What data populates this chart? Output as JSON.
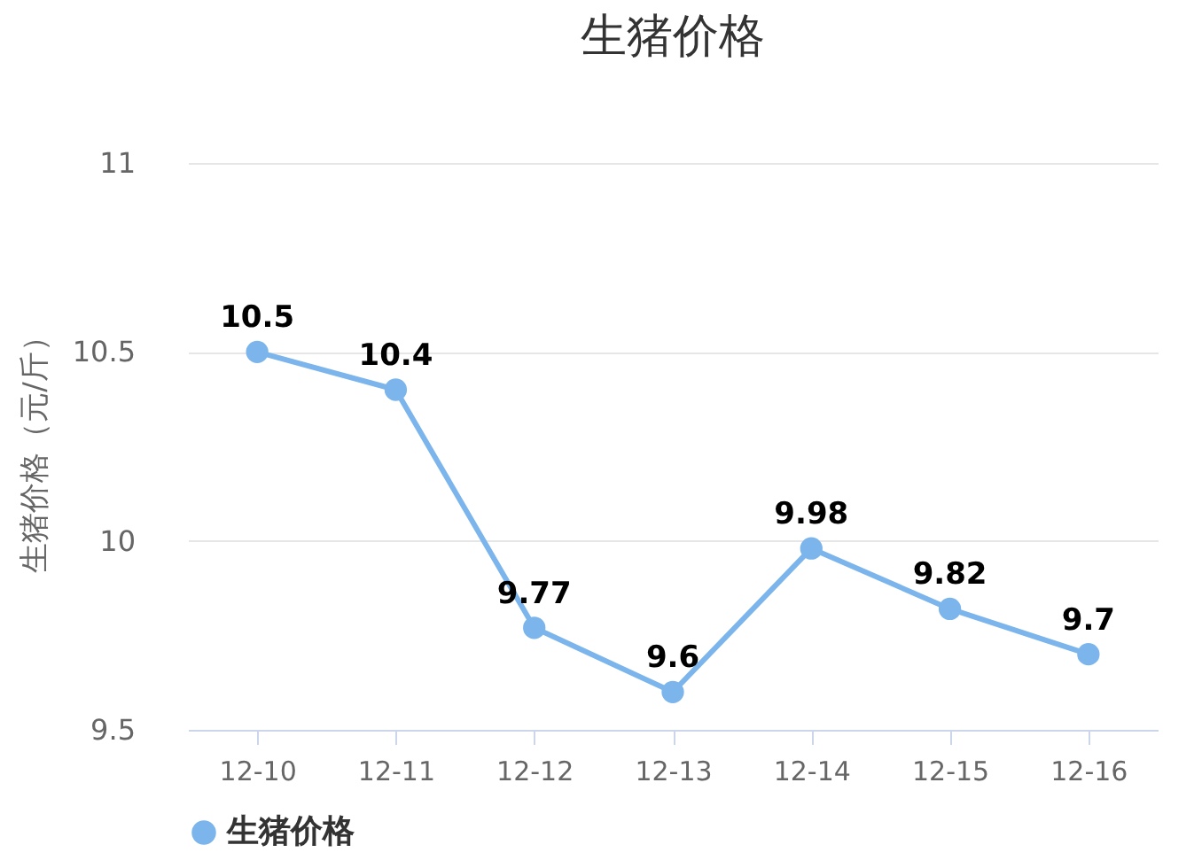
{
  "chart_data": {
    "type": "line",
    "title": "生猪价格",
    "ylabel": "生猪价格（元/斤）",
    "categories": [
      "12-10",
      "12-11",
      "12-12",
      "12-13",
      "12-14",
      "12-15",
      "12-16"
    ],
    "series": [
      {
        "name": "生猪价格",
        "color": "#7cb5ec",
        "values": [
          10.5,
          10.4,
          9.77,
          9.6,
          9.98,
          9.82,
          9.7
        ]
      }
    ],
    "ylim": [
      9.5,
      11
    ],
    "yticks": [
      9.5,
      10,
      10.5,
      11
    ],
    "grid": "y",
    "legend": "bottom",
    "marker": "circle",
    "data_labels": true
  }
}
